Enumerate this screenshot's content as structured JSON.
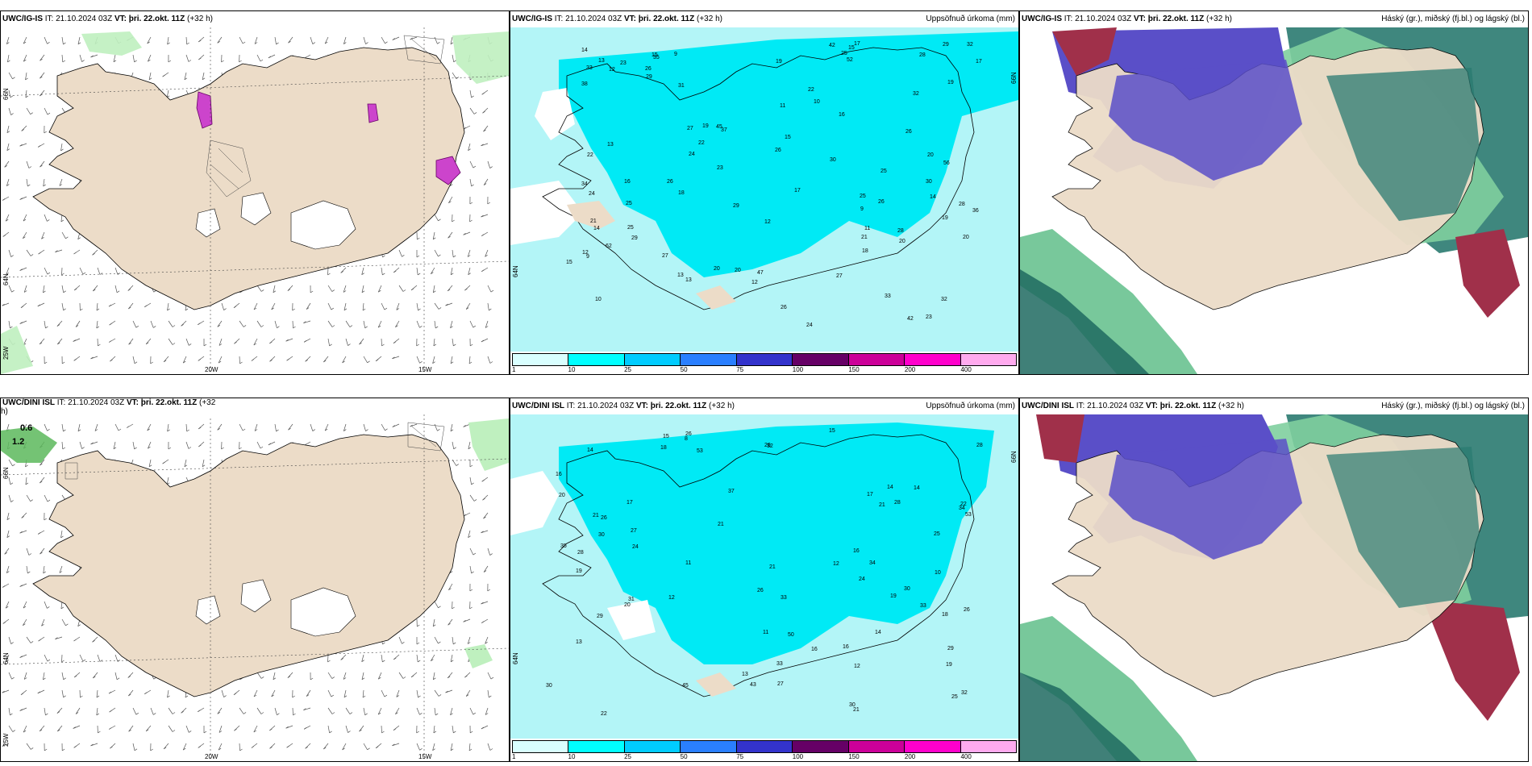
{
  "panels": [
    {
      "model": "UWC/IG-IS",
      "it": "IT: 21.10.2024 03Z",
      "vt_label": "VT:",
      "vt": "þri. 22.okt. 11Z",
      "lead": "(+32 h)",
      "title": "",
      "lat_labels": [
        "66N",
        "64N",
        "25W"
      ],
      "lon_labels": [
        "20W",
        "15W"
      ],
      "type": "wind"
    },
    {
      "model": "UWC/IG-IS",
      "it": "IT: 21.10.2024 03Z",
      "vt_label": "VT:",
      "vt": "þri. 22.okt. 11Z",
      "lead": "(+32 h)",
      "title": "Uppsöfnuð úrkoma (mm)",
      "lat_labels": [
        "66N",
        "64N"
      ],
      "type": "precip",
      "numbers": [
        "9",
        "14",
        "10",
        "35",
        "37",
        "33",
        "9",
        "52",
        "27",
        "24",
        "38",
        "34",
        "33",
        "32",
        "20",
        "56",
        "12",
        "17",
        "45",
        "29",
        "32",
        "28",
        "24",
        "19",
        "42",
        "26",
        "11",
        "24",
        "29",
        "25",
        "26",
        "27",
        "22",
        "18",
        "30",
        "20",
        "21",
        "16",
        "47",
        "62",
        "19",
        "17",
        "23",
        "20",
        "28",
        "27",
        "15",
        "13",
        "30",
        "22",
        "36",
        "19",
        "29",
        "25",
        "18",
        "42",
        "16",
        "14",
        "25",
        "23",
        "26",
        "31",
        "15",
        "21",
        "19",
        "13",
        "29",
        "25",
        "26",
        "12",
        "10",
        "9",
        "23",
        "12",
        "26",
        "15",
        "14",
        "13",
        "13",
        "32",
        "20",
        "22",
        "25",
        "26",
        "20",
        "28",
        "15",
        "12",
        "17",
        "11"
      ]
    },
    {
      "model": "UWC/IG-IS",
      "it": "IT: 21.10.2024 03Z",
      "vt_label": "VT:",
      "vt": "þri. 22.okt. 11Z",
      "lead": "(+32 h)",
      "title": "Háský (gr.), miðský (fj.bl.) og lágský (bl.)",
      "type": "cloud"
    },
    {
      "model": "UWC/DINI ISL",
      "it": "IT: 21.10.2024 03Z",
      "vt_label": "VT:",
      "vt": "þri. 22.okt. 11Z",
      "lead": "(+32",
      "lead2": "h)",
      "title": "",
      "lat_labels": [
        "66N",
        "64N",
        "25W"
      ],
      "lon_labels": [
        "20W",
        "15W"
      ],
      "type": "wind",
      "contours": [
        "0.6",
        "1.2"
      ]
    },
    {
      "model": "UWC/DINI ISL",
      "it": "IT: 21.10.2024 03Z",
      "vt_label": "VT:",
      "vt": "þri. 22.okt. 11Z",
      "lead": "(+32 h)",
      "title": "Uppsöfnuð úrkoma (mm)",
      "lat_labels": [
        "66N",
        "64N"
      ],
      "type": "precip",
      "numbers": [
        "29",
        "33",
        "14",
        "25",
        "37",
        "30",
        "53",
        "31",
        "33",
        "43",
        "32",
        "16",
        "34",
        "21",
        "33",
        "30",
        "29",
        "53",
        "25",
        "28",
        "26",
        "21",
        "18",
        "12",
        "27",
        "26",
        "19",
        "45",
        "50",
        "20",
        "24",
        "20",
        "34",
        "17",
        "24",
        "12",
        "16",
        "32",
        "19",
        "28",
        "13",
        "27",
        "14",
        "21",
        "18",
        "30",
        "15",
        "11",
        "26",
        "16",
        "35",
        "19",
        "28",
        "17",
        "22",
        "26",
        "21",
        "14",
        "10",
        "13",
        "12",
        "11",
        "26",
        "30",
        "15",
        "22",
        "21",
        "16",
        "14",
        "8"
      ]
    },
    {
      "model": "UWC/DINI ISL",
      "it": "IT: 21.10.2024 03Z",
      "vt_label": "VT:",
      "vt": "þri. 22.okt. 11Z",
      "lead": "(+32 h)",
      "title": "Háský (gr.), miðský (fj.bl.) og lágský (bl.)",
      "type": "cloud"
    }
  ],
  "legend": {
    "ticks": [
      "1",
      "10",
      "25",
      "50",
      "75",
      "100",
      "150",
      "200",
      "400"
    ],
    "colors": [
      "#d9ffff",
      "#00ffff",
      "#00ccff",
      "#2a7fff",
      "#3333cc",
      "#660066",
      "#cc0099",
      "#ff00cc",
      "#ffaaee"
    ]
  },
  "colors": {
    "land": "#ecdcc8",
    "precip_light": "#b3f5f7",
    "precip_mid": "#00eaf5",
    "precip_high": "#00c8f0",
    "cloud_high": "#5a4fc8",
    "cloud_mid": "#2a7a70",
    "cloud_low": "#60c090"
  }
}
